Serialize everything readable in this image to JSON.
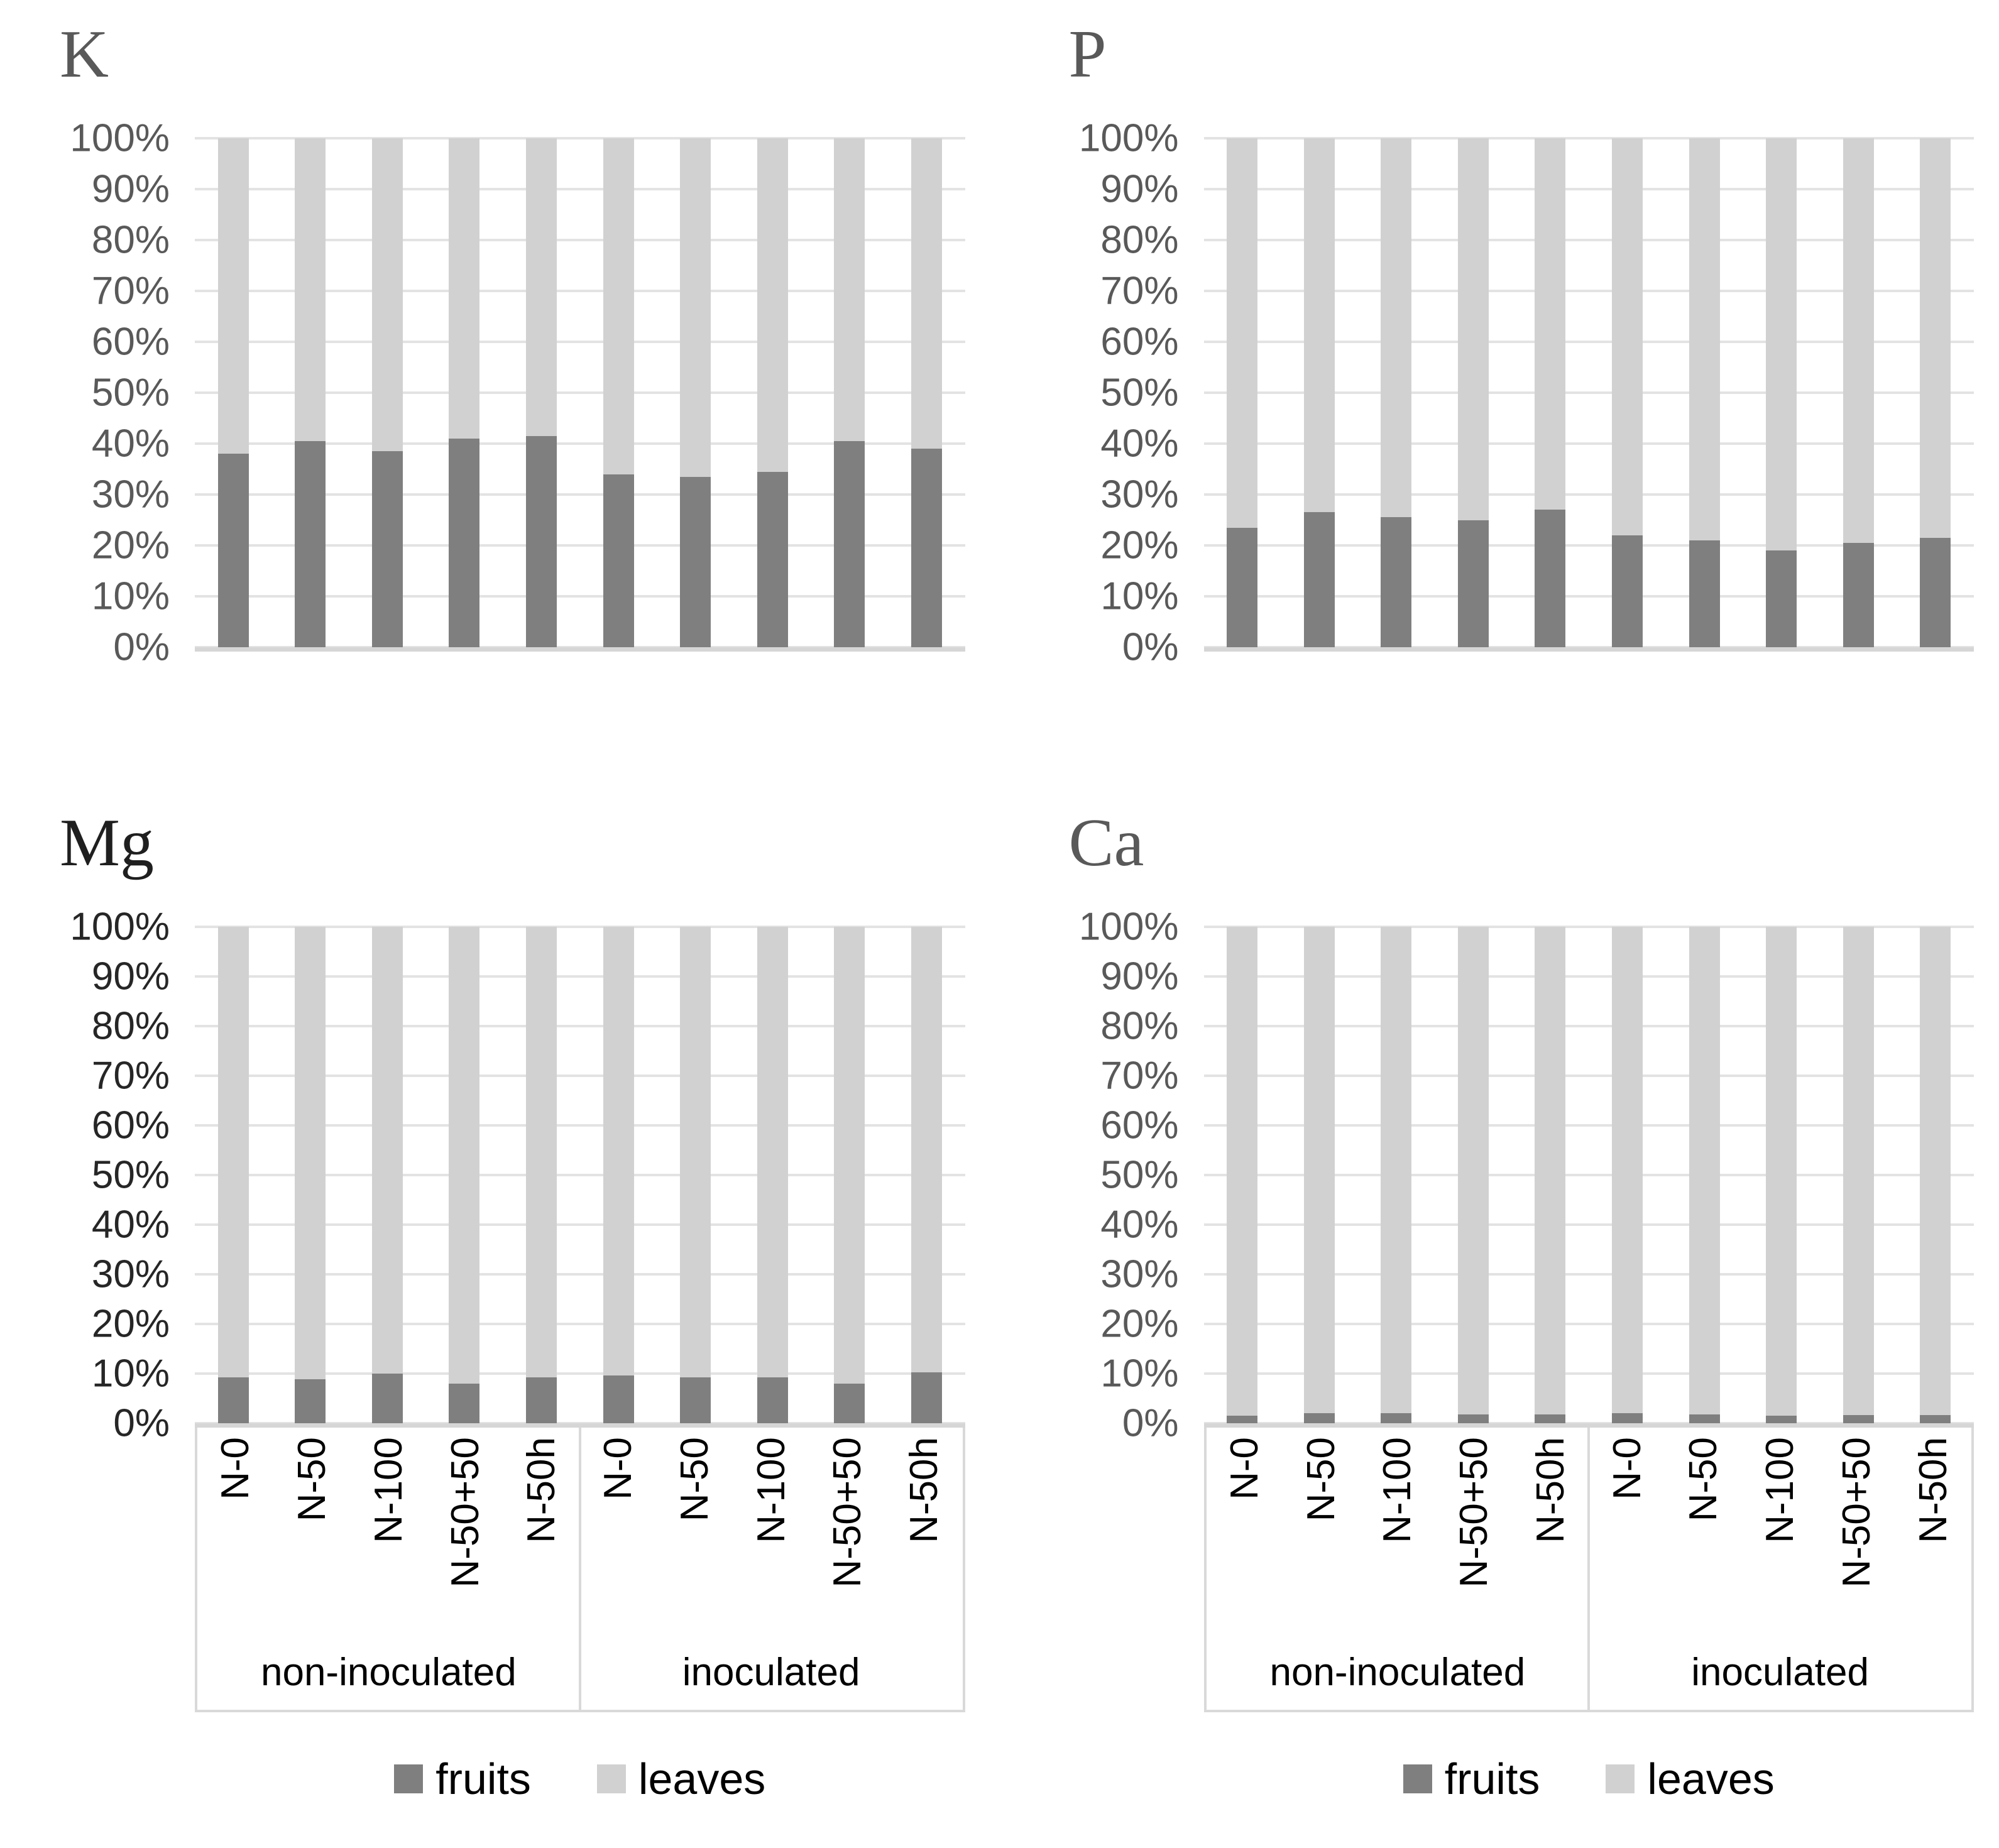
{
  "figure_title": "",
  "style": {
    "fruits_color": "#7f7f7f",
    "leaves_color": "#d1d1d1",
    "grid_color": "#e3e3e3",
    "axis_line_color": "#d6d6d6",
    "frame_color": "#d9d9d9",
    "title_color": "#595959",
    "text_color": "#000000"
  },
  "legend": {
    "items": [
      {
        "label": "fruits",
        "color": "#7f7f7f"
      },
      {
        "label": "leaves",
        "color": "#d1d1d1"
      }
    ]
  },
  "chart_data": [
    {
      "type": "bar",
      "stacked": true,
      "percent_stacked": true,
      "title": "K",
      "title_color": "#595959",
      "tick_color": "#595959",
      "categories": [
        "N-0",
        "N-50",
        "N-100",
        "N-50+50",
        "N-50h",
        "N-0",
        "N-50",
        "N-100",
        "N-50+50",
        "N-50h"
      ],
      "group_labels": [
        "non-inoculated",
        "inoculated"
      ],
      "series": [
        {
          "name": "fruits",
          "values": [
            38,
            40.5,
            38.5,
            41,
            41.5,
            34,
            33.5,
            34.5,
            40.5,
            39
          ]
        },
        {
          "name": "leaves",
          "values": [
            62,
            59.5,
            61.5,
            59,
            58.5,
            66,
            66.5,
            65.5,
            59.5,
            61
          ]
        }
      ],
      "ylim": [
        0,
        100
      ],
      "yticks": [
        "0%",
        "10%",
        "20%",
        "30%",
        "40%",
        "50%",
        "60%",
        "70%",
        "80%",
        "90%",
        "100%"
      ],
      "grid": true,
      "show_category_axis": false,
      "show_legend": false
    },
    {
      "type": "bar",
      "stacked": true,
      "percent_stacked": true,
      "title": "P",
      "title_color": "#595959",
      "tick_color": "#595959",
      "categories": [
        "N-0",
        "N-50",
        "N-100",
        "N-50+50",
        "N-50h",
        "N-0",
        "N-50",
        "N-100",
        "N-50+50",
        "N-50h"
      ],
      "group_labels": [
        "non-inoculated",
        "inoculated"
      ],
      "series": [
        {
          "name": "fruits",
          "values": [
            23.5,
            26.5,
            25.5,
            25,
            27,
            22,
            21,
            19,
            20.5,
            21.5
          ]
        },
        {
          "name": "leaves",
          "values": [
            76.5,
            73.5,
            74.5,
            75,
            73,
            78,
            79,
            81,
            79.5,
            78.5
          ]
        }
      ],
      "ylim": [
        0,
        100
      ],
      "yticks": [
        "0%",
        "10%",
        "20%",
        "30%",
        "40%",
        "50%",
        "60%",
        "70%",
        "80%",
        "90%",
        "100%"
      ],
      "grid": true,
      "show_category_axis": false,
      "show_legend": false
    },
    {
      "type": "bar",
      "stacked": true,
      "percent_stacked": true,
      "title": "Mg",
      "title_color": "#1f1f1f",
      "tick_color": "#262626",
      "categories": [
        "N-0",
        "N-50",
        "N-100",
        "N-50+50",
        "N-50h",
        "N-0",
        "N-50",
        "N-100",
        "N-50+50",
        "N-50h"
      ],
      "group_labels": [
        "non-inoculated",
        "inoculated"
      ],
      "series": [
        {
          "name": "fruits",
          "values": [
            9.2,
            8.8,
            10,
            8,
            9.3,
            9.6,
            9.2,
            9.2,
            8,
            10.3
          ]
        },
        {
          "name": "leaves",
          "values": [
            90.8,
            91.2,
            90,
            92,
            90.7,
            90.4,
            90.8,
            90.8,
            92,
            89.7
          ]
        }
      ],
      "ylim": [
        0,
        100
      ],
      "yticks": [
        "0%",
        "10%",
        "20%",
        "30%",
        "40%",
        "50%",
        "60%",
        "70%",
        "80%",
        "90%",
        "100%"
      ],
      "grid": true,
      "show_category_axis": true,
      "show_legend": true
    },
    {
      "type": "bar",
      "stacked": true,
      "percent_stacked": true,
      "title": "Ca",
      "title_color": "#595959",
      "tick_color": "#595959",
      "categories": [
        "N-0",
        "N-50",
        "N-100",
        "N-50+50",
        "N-50h",
        "N-0",
        "N-50",
        "N-100",
        "N-50+50",
        "N-50h"
      ],
      "group_labels": [
        "non-inoculated",
        "inoculated"
      ],
      "series": [
        {
          "name": "fruits",
          "values": [
            1.5,
            2,
            2,
            1.8,
            1.8,
            2,
            1.8,
            1.5,
            1.7,
            1.7
          ]
        },
        {
          "name": "leaves",
          "values": [
            98.5,
            98,
            98,
            98.2,
            98.2,
            98,
            98.2,
            98.5,
            98.3,
            98.3
          ]
        }
      ],
      "ylim": [
        0,
        100
      ],
      "yticks": [
        "0%",
        "10%",
        "20%",
        "30%",
        "40%",
        "50%",
        "60%",
        "70%",
        "80%",
        "90%",
        "100%"
      ],
      "grid": true,
      "show_category_axis": true,
      "show_legend": true
    }
  ]
}
